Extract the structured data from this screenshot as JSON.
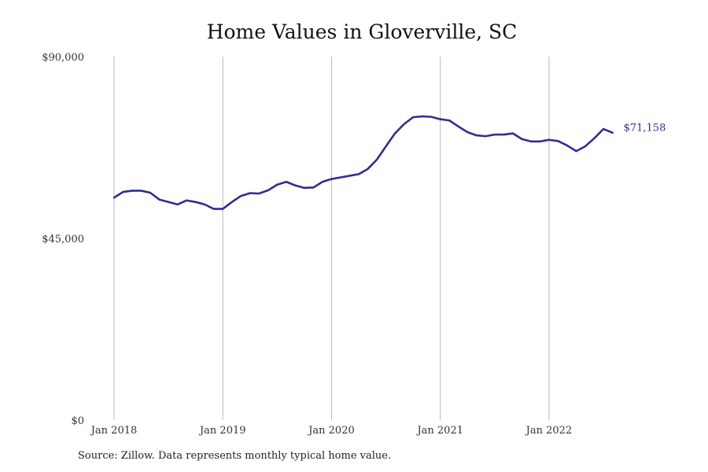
{
  "chart_data": {
    "type": "line",
    "title": "Home Values in Gloverville, SC",
    "xlabel": "",
    "ylabel": "",
    "ylim": [
      0,
      90000
    ],
    "y_ticks": [
      "$0",
      "$45,000",
      "$90,000"
    ],
    "y_tick_values": [
      0,
      45000,
      90000
    ],
    "x_ticks": [
      "Jan 2018",
      "Jan 2019",
      "Jan 2020",
      "Jan 2021",
      "Jan 2022"
    ],
    "x_tick_values": [
      "2018-01",
      "2019-01",
      "2020-01",
      "2021-01",
      "2022-01"
    ],
    "grid": "vertical",
    "legend": "none",
    "line_color": "#2f2f8f",
    "end_label": "$71,158",
    "x": [
      "2018-01",
      "2018-02",
      "2018-03",
      "2018-04",
      "2018-05",
      "2018-06",
      "2018-07",
      "2018-08",
      "2018-09",
      "2018-10",
      "2018-11",
      "2018-12",
      "2019-01",
      "2019-02",
      "2019-03",
      "2019-04",
      "2019-05",
      "2019-06",
      "2019-07",
      "2019-08",
      "2019-09",
      "2019-10",
      "2019-11",
      "2019-12",
      "2020-01",
      "2020-02",
      "2020-03",
      "2020-04",
      "2020-05",
      "2020-06",
      "2020-07",
      "2020-08",
      "2020-09",
      "2020-10",
      "2020-11",
      "2020-12",
      "2021-01",
      "2021-02",
      "2021-03",
      "2021-04",
      "2021-05",
      "2021-06",
      "2021-07",
      "2021-08",
      "2021-09",
      "2021-10",
      "2021-11",
      "2021-12",
      "2022-01",
      "2022-02",
      "2022-03",
      "2022-04",
      "2022-05",
      "2022-06",
      "2022-07",
      "2022-08"
    ],
    "values": [
      55100,
      56500,
      56800,
      56800,
      56300,
      54600,
      54000,
      53400,
      54400,
      54000,
      53400,
      52300,
      52300,
      54000,
      55500,
      56200,
      56100,
      56900,
      58300,
      59000,
      58100,
      57500,
      57600,
      59000,
      59700,
      60100,
      60500,
      60900,
      62200,
      64500,
      67800,
      71000,
      73300,
      75000,
      75200,
      75100,
      74500,
      74200,
      72700,
      71300,
      70500,
      70300,
      70700,
      70700,
      71000,
      69600,
      69000,
      69000,
      69400,
      69100,
      68000,
      66600,
      67800,
      69800,
      72100,
      71158
    ]
  },
  "source_note": "Source: Zillow. Data represents monthly typical home value."
}
